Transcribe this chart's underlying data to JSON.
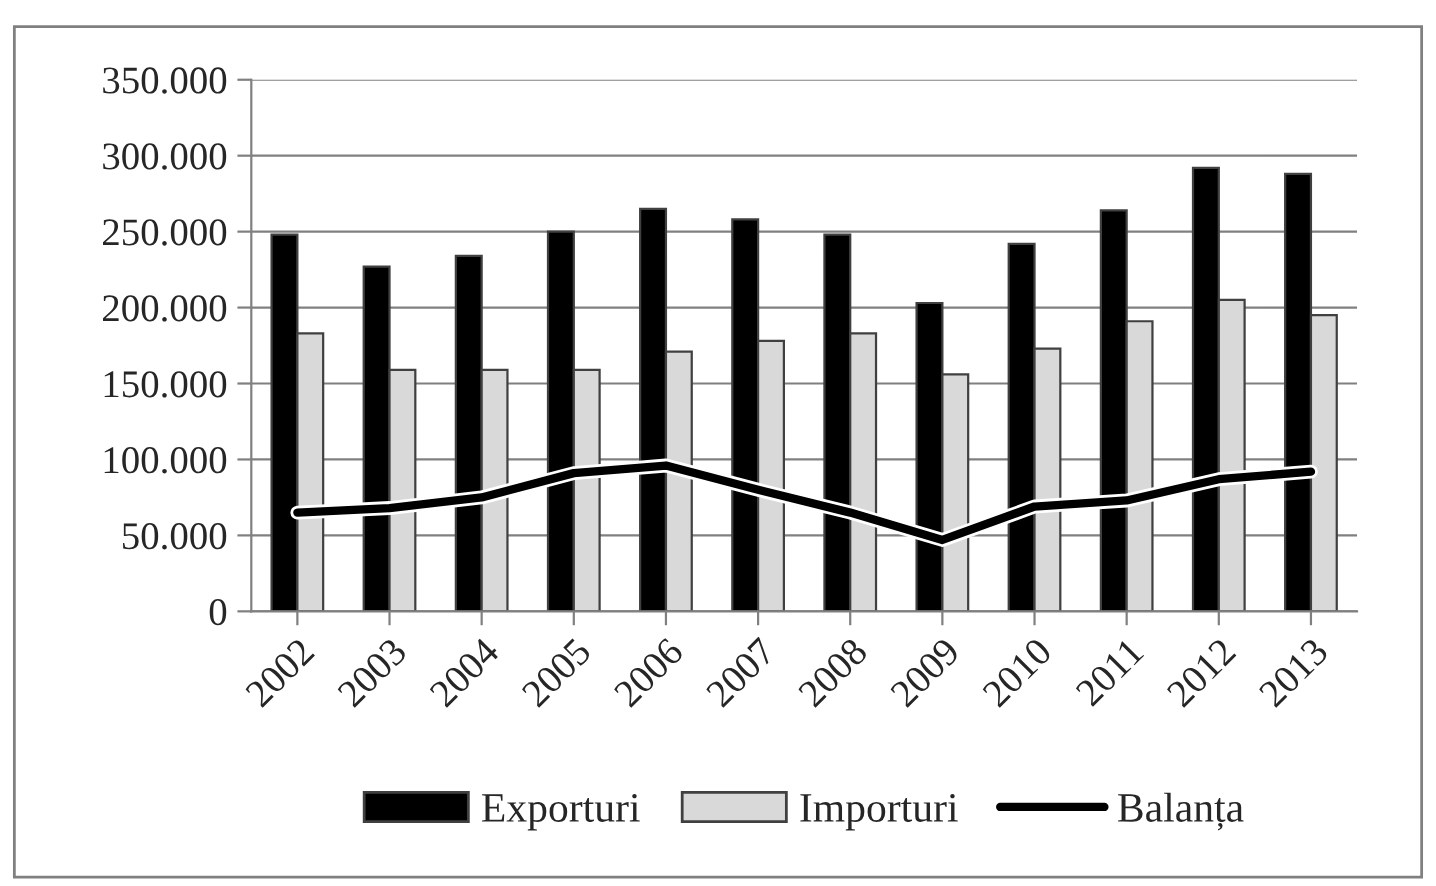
{
  "chart_data": {
    "type": "bar",
    "categories": [
      "2002",
      "2003",
      "2004",
      "2005",
      "2006",
      "2007",
      "2008",
      "2009",
      "2010",
      "2011",
      "2012",
      "2013"
    ],
    "series": [
      {
        "name": "Exporturi",
        "color": "#000000",
        "values": [
          248000,
          227000,
          234000,
          250000,
          265000,
          258000,
          248000,
          203000,
          242000,
          264000,
          292000,
          288000
        ]
      },
      {
        "name": "Importuri",
        "color": "#d9d9d9",
        "values": [
          183000,
          159000,
          159000,
          159000,
          171000,
          178000,
          183000,
          156000,
          173000,
          191000,
          205000,
          195000
        ]
      },
      {
        "name": "Balanța",
        "type": "line",
        "color": "#000000",
        "values": [
          65000,
          68000,
          75000,
          91000,
          96000,
          80000,
          65000,
          47000,
          69000,
          73000,
          87000,
          92000
        ]
      }
    ],
    "ylim": [
      0,
      350000
    ],
    "yticks": [
      0,
      {
        "value": 50000,
        "label": "50.000"
      },
      {
        "value": 100000,
        "label": "100.000"
      },
      {
        "value": 150000,
        "label": "150.000"
      },
      {
        "value": 200000,
        "label": "200.000"
      },
      {
        "value": 250000,
        "label": "250.000"
      },
      {
        "value": 300000,
        "label": "300.000"
      },
      {
        "value": 350000,
        "label": "350.000"
      }
    ],
    "grid": "y",
    "legend": "bottom",
    "marker": "none",
    "line_style": "solid"
  }
}
